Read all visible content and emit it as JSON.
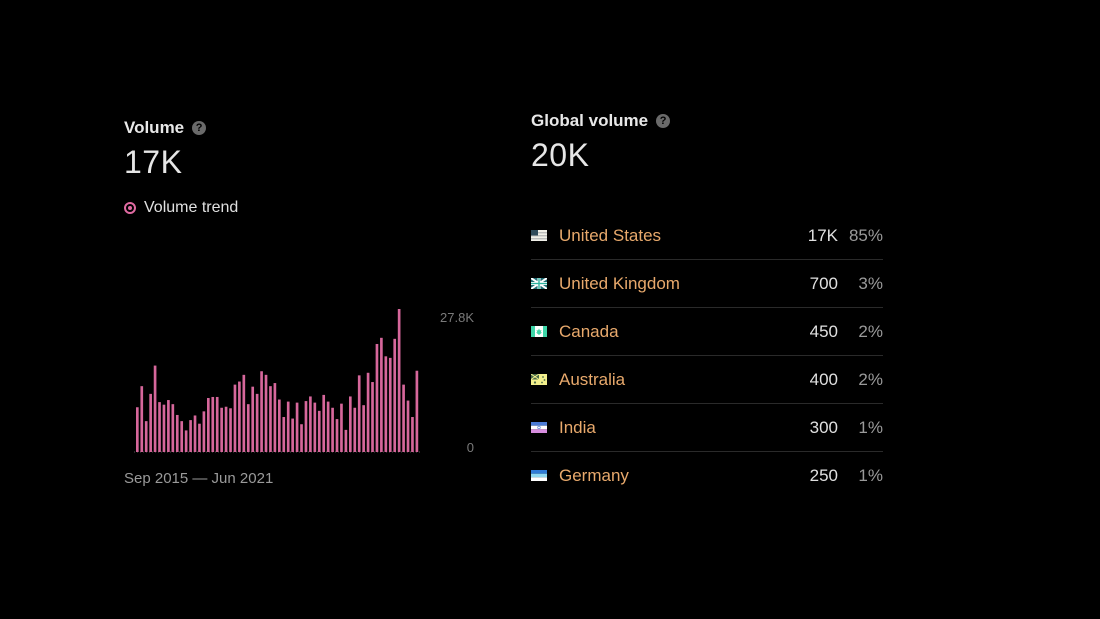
{
  "volume": {
    "label": "Volume",
    "value": "17K",
    "help_icon": "question-circle-icon",
    "legend_label": "Volume trend",
    "legend_color": "#e06aa1",
    "date_range": "Sep 2015 — Jun 2021"
  },
  "chart_data": {
    "type": "bar",
    "color": "#d6679b",
    "ylim": [
      0,
      27800
    ],
    "y_tick_labels": [
      "27.8K",
      "0"
    ],
    "values": [
      8700,
      12800,
      6000,
      11300,
      16800,
      9700,
      9200,
      10100,
      9300,
      7200,
      6000,
      4200,
      6200,
      7100,
      5500,
      7900,
      10500,
      10700,
      10700,
      8600,
      8800,
      8500,
      13100,
      13700,
      15000,
      9300,
      12700,
      11300,
      15700,
      15000,
      12800,
      13400,
      10200,
      6800,
      9800,
      6500,
      9600,
      5400,
      9900,
      10800,
      9600,
      8000,
      11100,
      9800,
      8600,
      6400,
      9400,
      4300,
      10800,
      8600,
      14900,
      9100,
      15400,
      13600,
      21000,
      22200,
      18600,
      18300,
      22000,
      27800,
      13100,
      10000,
      6800,
      15800
    ]
  },
  "global": {
    "label": "Global volume",
    "value": "20K",
    "help_icon": "question-circle-icon",
    "countries": [
      {
        "name": "United States",
        "volume": "17K",
        "percent": "85%",
        "flag": "flag-us-icon"
      },
      {
        "name": "United Kingdom",
        "volume": "700",
        "percent": "3%",
        "flag": "flag-uk-icon"
      },
      {
        "name": "Canada",
        "volume": "450",
        "percent": "2%",
        "flag": "flag-ca-icon"
      },
      {
        "name": "Australia",
        "volume": "400",
        "percent": "2%",
        "flag": "flag-au-icon"
      },
      {
        "name": "India",
        "volume": "300",
        "percent": "1%",
        "flag": "flag-in-icon"
      },
      {
        "name": "Germany",
        "volume": "250",
        "percent": "1%",
        "flag": "flag-de-icon"
      }
    ]
  }
}
